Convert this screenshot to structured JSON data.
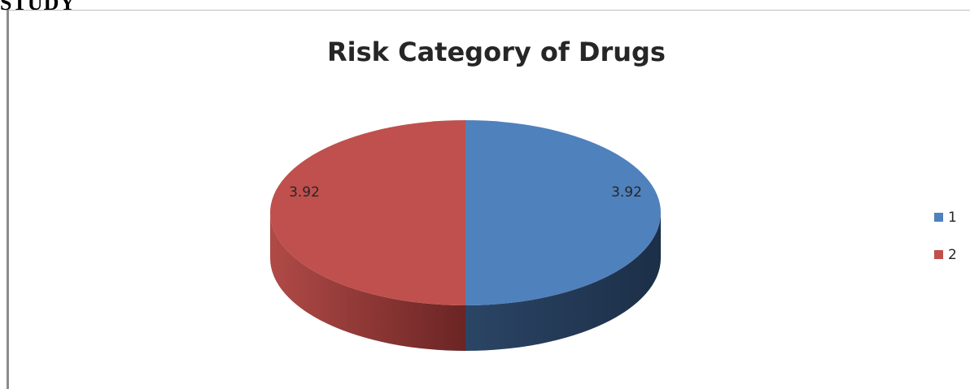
{
  "document": {
    "heading_fragment": "STUDY"
  },
  "chart_data": {
    "type": "pie",
    "title": "Risk Category of Drugs",
    "categories": [
      "1",
      "2"
    ],
    "values": [
      3.92,
      3.92
    ],
    "data_labels": [
      "3.92",
      "3.92"
    ],
    "colors": [
      "#4f81bd",
      "#c0504d"
    ],
    "legend_placement": "right",
    "style": "3d"
  }
}
